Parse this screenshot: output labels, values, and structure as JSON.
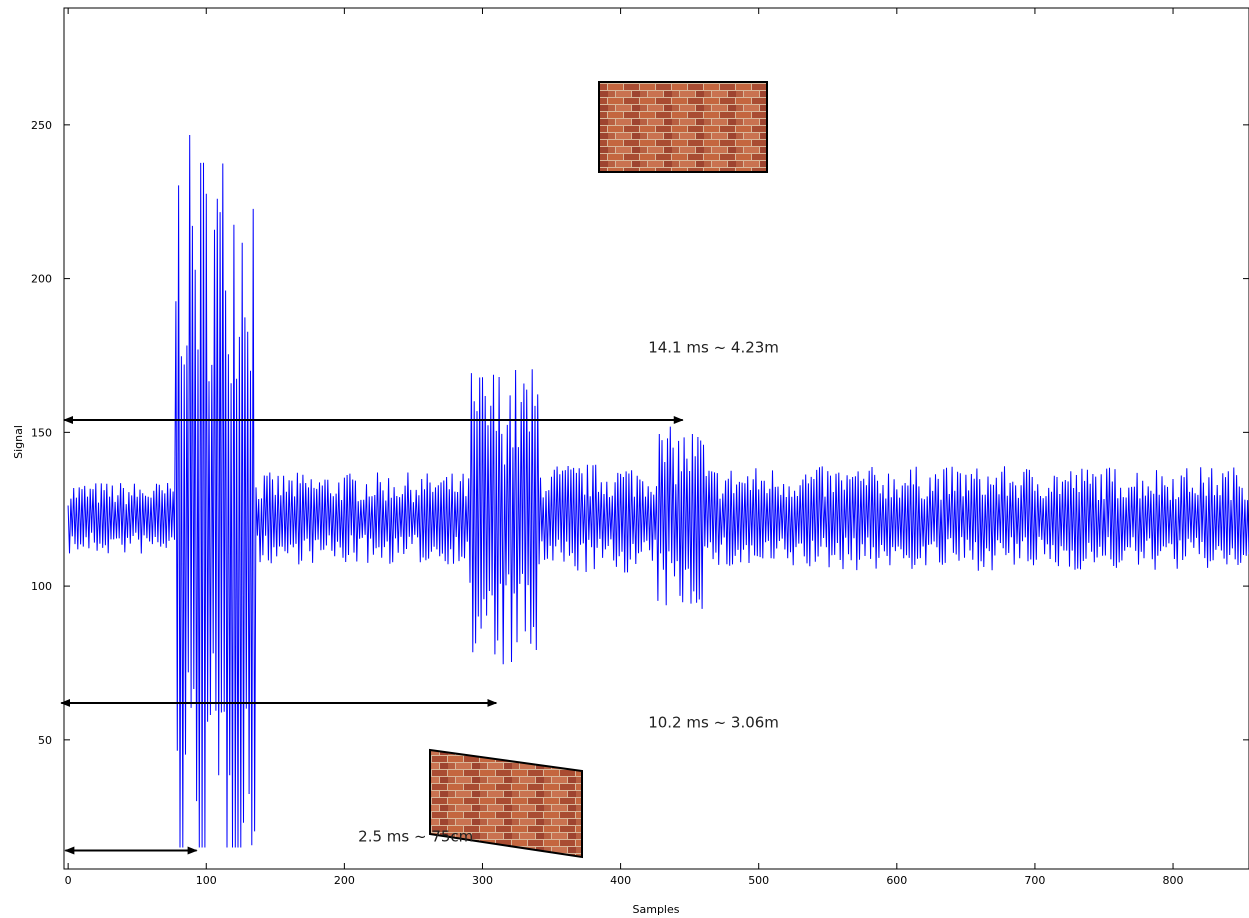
{
  "chart_data": {
    "type": "line",
    "title": "",
    "xlabel": "Samples",
    "ylabel": "Signal",
    "xlim": [
      -3,
      855
    ],
    "ylim": [
      8,
      288
    ],
    "xticks": [
      0,
      100,
      200,
      300,
      400,
      500,
      600,
      700,
      800
    ],
    "yticks": [
      50,
      100,
      150,
      200,
      250
    ],
    "grid": false,
    "series": [
      {
        "color": "#0000ff",
        "baseline": 122,
        "x_range": [
          0,
          855
        ],
        "envelope": [
          {
            "x": [
              0,
              70
            ],
            "amplitude": 12
          },
          {
            "x": [
              78,
              135
            ],
            "amplitude": 125,
            "peak_max": 255,
            "peak_min": 15
          },
          {
            "x": [
              135,
              290
            ],
            "amplitude": 15
          },
          {
            "x": [
              290,
              340
            ],
            "amplitude": 50,
            "peak_max": 177,
            "peak_min": 64
          },
          {
            "x": [
              340,
              425
            ],
            "amplitude": 18
          },
          {
            "x": [
              425,
              460
            ],
            "amplitude": 30,
            "peak_max": 156,
            "peak_min": 85
          },
          {
            "x": [
              460,
              855
            ],
            "amplitude": 17
          }
        ]
      }
    ],
    "annotations": [
      {
        "text": "14.1 ms ~ 4.23m",
        "x_from": -3,
        "x_to": 445,
        "y": 154,
        "text_x": 420,
        "text_y": 176
      },
      {
        "text": "10.2 ms ~ 3.06m",
        "x_from": -5,
        "x_to": 310,
        "y": 62,
        "text_x": 420,
        "text_y": 54
      },
      {
        "text": "2.5 ms ~ 75cm",
        "x_from": -2,
        "x_to": 93,
        "y": 14,
        "text_x": 210,
        "text_y": 17
      }
    ]
  },
  "images": [
    {
      "name": "brick-wall-image-front"
    },
    {
      "name": "brick-wall-image-angled"
    }
  ]
}
